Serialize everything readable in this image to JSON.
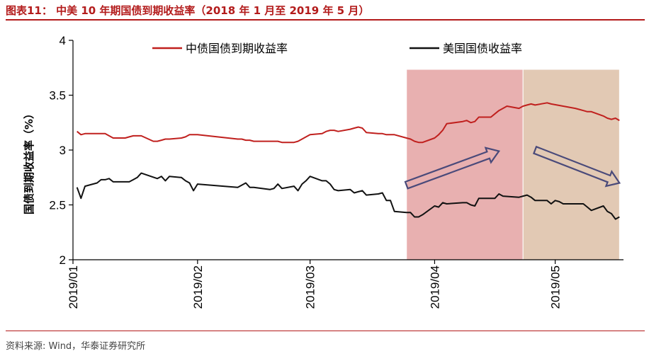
{
  "header": {
    "title": "图表11： 中美 10 年期国债到期收益率（2018 年 1 月至 2019 年 5 月）"
  },
  "footer": {
    "source": "资料来源: Wind，华泰证券研究所"
  },
  "chart_data": {
    "type": "line",
    "title": "",
    "xlabel": "",
    "ylabel": "国债到期收益率（%）",
    "ylim": [
      2,
      4
    ],
    "yticks": [
      "2",
      "2.5",
      "3",
      "3.5",
      "4"
    ],
    "x_ticks": [
      "2019/01",
      "2019/02",
      "2019/03",
      "2019/04",
      "2019/05"
    ],
    "grid": false,
    "legend_placement": "top",
    "shaded_regions": [
      {
        "from": "2019/03/25",
        "to": "2019/04/23",
        "color": "#e8b0b0"
      },
      {
        "from": "2019/04/23",
        "to": "2019/05/17",
        "color": "#e2c9b4"
      }
    ],
    "arrows": [
      {
        "direction": "up",
        "from": [
          "2019/03/25",
          2.68
        ],
        "to": [
          "2019/04/17",
          2.99
        ]
      },
      {
        "direction": "down",
        "from": [
          "2019/04/26",
          3.0
        ],
        "to": [
          "2019/05/17",
          2.7
        ]
      }
    ],
    "series": [
      {
        "name": "中债国债到期收益率",
        "color": "#c0201e",
        "points": [
          [
            "2019/01/02",
            3.17
          ],
          [
            "2019/01/03",
            3.14
          ],
          [
            "2019/01/04",
            3.15
          ],
          [
            "2019/01/07",
            3.15
          ],
          [
            "2019/01/08",
            3.15
          ],
          [
            "2019/01/09",
            3.15
          ],
          [
            "2019/01/10",
            3.13
          ],
          [
            "2019/01/11",
            3.11
          ],
          [
            "2019/01/14",
            3.11
          ],
          [
            "2019/01/15",
            3.12
          ],
          [
            "2019/01/16",
            3.13
          ],
          [
            "2019/01/17",
            3.13
          ],
          [
            "2019/01/18",
            3.13
          ],
          [
            "2019/01/21",
            3.08
          ],
          [
            "2019/01/22",
            3.08
          ],
          [
            "2019/01/23",
            3.09
          ],
          [
            "2019/01/24",
            3.1
          ],
          [
            "2019/01/25",
            3.1
          ],
          [
            "2019/01/28",
            3.11
          ],
          [
            "2019/01/29",
            3.12
          ],
          [
            "2019/01/30",
            3.14
          ],
          [
            "2019/01/31",
            3.14
          ],
          [
            "2019/02/01",
            3.14
          ],
          [
            "2019/02/11",
            3.1
          ],
          [
            "2019/02/12",
            3.1
          ],
          [
            "2019/02/13",
            3.09
          ],
          [
            "2019/02/14",
            3.09
          ],
          [
            "2019/02/15",
            3.08
          ],
          [
            "2019/02/18",
            3.08
          ],
          [
            "2019/02/19",
            3.08
          ],
          [
            "2019/02/20",
            3.08
          ],
          [
            "2019/02/21",
            3.08
          ],
          [
            "2019/02/22",
            3.07
          ],
          [
            "2019/02/25",
            3.07
          ],
          [
            "2019/02/26",
            3.08
          ],
          [
            "2019/02/27",
            3.1
          ],
          [
            "2019/02/28",
            3.12
          ],
          [
            "2019/03/01",
            3.14
          ],
          [
            "2019/03/04",
            3.15
          ],
          [
            "2019/03/05",
            3.17
          ],
          [
            "2019/03/06",
            3.18
          ],
          [
            "2019/03/07",
            3.18
          ],
          [
            "2019/03/08",
            3.17
          ],
          [
            "2019/03/11",
            3.19
          ],
          [
            "2019/03/12",
            3.2
          ],
          [
            "2019/03/13",
            3.21
          ],
          [
            "2019/03/14",
            3.2
          ],
          [
            "2019/03/15",
            3.16
          ],
          [
            "2019/03/18",
            3.15
          ],
          [
            "2019/03/19",
            3.15
          ],
          [
            "2019/03/20",
            3.14
          ],
          [
            "2019/03/21",
            3.14
          ],
          [
            "2019/03/22",
            3.14
          ],
          [
            "2019/03/25",
            3.11
          ],
          [
            "2019/03/26",
            3.1
          ],
          [
            "2019/03/27",
            3.08
          ],
          [
            "2019/03/28",
            3.07
          ],
          [
            "2019/03/29",
            3.07
          ],
          [
            "2019/04/01",
            3.11
          ],
          [
            "2019/04/02",
            3.14
          ],
          [
            "2019/04/03",
            3.18
          ],
          [
            "2019/04/04",
            3.24
          ],
          [
            "2019/04/08",
            3.26
          ],
          [
            "2019/04/09",
            3.27
          ],
          [
            "2019/04/10",
            3.25
          ],
          [
            "2019/04/11",
            3.26
          ],
          [
            "2019/04/12",
            3.3
          ],
          [
            "2019/04/15",
            3.3
          ],
          [
            "2019/04/16",
            3.33
          ],
          [
            "2019/04/17",
            3.36
          ],
          [
            "2019/04/18",
            3.38
          ],
          [
            "2019/04/19",
            3.4
          ],
          [
            "2019/04/22",
            3.38
          ],
          [
            "2019/04/23",
            3.4
          ],
          [
            "2019/04/24",
            3.41
          ],
          [
            "2019/04/25",
            3.42
          ],
          [
            "2019/04/26",
            3.41
          ],
          [
            "2019/04/29",
            3.43
          ],
          [
            "2019/04/30",
            3.42
          ],
          [
            "2019/05/06",
            3.38
          ],
          [
            "2019/05/07",
            3.37
          ],
          [
            "2019/05/08",
            3.36
          ],
          [
            "2019/05/09",
            3.35
          ],
          [
            "2019/05/10",
            3.35
          ],
          [
            "2019/05/13",
            3.31
          ],
          [
            "2019/05/14",
            3.29
          ],
          [
            "2019/05/15",
            3.28
          ],
          [
            "2019/05/16",
            3.29
          ],
          [
            "2019/05/17",
            3.27
          ]
        ]
      },
      {
        "name": "美国国债收益率",
        "color": "#111111",
        "points": [
          [
            "2019/01/02",
            2.66
          ],
          [
            "2019/01/03",
            2.56
          ],
          [
            "2019/01/04",
            2.67
          ],
          [
            "2019/01/07",
            2.7
          ],
          [
            "2019/01/08",
            2.73
          ],
          [
            "2019/01/09",
            2.73
          ],
          [
            "2019/01/10",
            2.74
          ],
          [
            "2019/01/11",
            2.71
          ],
          [
            "2019/01/14",
            2.71
          ],
          [
            "2019/01/15",
            2.71
          ],
          [
            "2019/01/16",
            2.73
          ],
          [
            "2019/01/17",
            2.75
          ],
          [
            "2019/01/18",
            2.79
          ],
          [
            "2019/01/22",
            2.74
          ],
          [
            "2019/01/23",
            2.76
          ],
          [
            "2019/01/24",
            2.72
          ],
          [
            "2019/01/25",
            2.76
          ],
          [
            "2019/01/28",
            2.75
          ],
          [
            "2019/01/29",
            2.72
          ],
          [
            "2019/01/30",
            2.7
          ],
          [
            "2019/01/31",
            2.63
          ],
          [
            "2019/02/01",
            2.69
          ],
          [
            "2019/02/11",
            2.66
          ],
          [
            "2019/02/12",
            2.68
          ],
          [
            "2019/02/13",
            2.7
          ],
          [
            "2019/02/14",
            2.66
          ],
          [
            "2019/02/15",
            2.66
          ],
          [
            "2019/02/19",
            2.64
          ],
          [
            "2019/02/20",
            2.65
          ],
          [
            "2019/02/21",
            2.69
          ],
          [
            "2019/02/22",
            2.65
          ],
          [
            "2019/02/25",
            2.67
          ],
          [
            "2019/02/26",
            2.63
          ],
          [
            "2019/02/27",
            2.69
          ],
          [
            "2019/02/28",
            2.72
          ],
          [
            "2019/03/01",
            2.76
          ],
          [
            "2019/03/04",
            2.72
          ],
          [
            "2019/03/05",
            2.72
          ],
          [
            "2019/03/06",
            2.69
          ],
          [
            "2019/03/07",
            2.64
          ],
          [
            "2019/03/08",
            2.63
          ],
          [
            "2019/03/11",
            2.64
          ],
          [
            "2019/03/12",
            2.61
          ],
          [
            "2019/03/13",
            2.62
          ],
          [
            "2019/03/14",
            2.63
          ],
          [
            "2019/03/15",
            2.59
          ],
          [
            "2019/03/18",
            2.6
          ],
          [
            "2019/03/19",
            2.61
          ],
          [
            "2019/03/20",
            2.54
          ],
          [
            "2019/03/21",
            2.54
          ],
          [
            "2019/03/22",
            2.44
          ],
          [
            "2019/03/25",
            2.43
          ],
          [
            "2019/03/26",
            2.43
          ],
          [
            "2019/03/27",
            2.39
          ],
          [
            "2019/03/28",
            2.39
          ],
          [
            "2019/03/29",
            2.41
          ],
          [
            "2019/04/01",
            2.49
          ],
          [
            "2019/04/02",
            2.48
          ],
          [
            "2019/04/03",
            2.52
          ],
          [
            "2019/04/04",
            2.51
          ],
          [
            "2019/04/08",
            2.52
          ],
          [
            "2019/04/09",
            2.52
          ],
          [
            "2019/04/10",
            2.5
          ],
          [
            "2019/04/11",
            2.49
          ],
          [
            "2019/04/12",
            2.56
          ],
          [
            "2019/04/15",
            2.56
          ],
          [
            "2019/04/16",
            2.56
          ],
          [
            "2019/04/17",
            2.6
          ],
          [
            "2019/04/18",
            2.58
          ],
          [
            "2019/04/22",
            2.57
          ],
          [
            "2019/04/23",
            2.58
          ],
          [
            "2019/04/24",
            2.59
          ],
          [
            "2019/04/25",
            2.57
          ],
          [
            "2019/04/26",
            2.54
          ],
          [
            "2019/04/29",
            2.54
          ],
          [
            "2019/04/30",
            2.51
          ],
          [
            "2019/05/01",
            2.54
          ],
          [
            "2019/05/02",
            2.53
          ],
          [
            "2019/05/03",
            2.51
          ],
          [
            "2019/05/06",
            2.51
          ],
          [
            "2019/05/07",
            2.51
          ],
          [
            "2019/05/08",
            2.51
          ],
          [
            "2019/05/09",
            2.48
          ],
          [
            "2019/05/10",
            2.45
          ],
          [
            "2019/05/13",
            2.49
          ],
          [
            "2019/05/14",
            2.44
          ],
          [
            "2019/05/15",
            2.42
          ],
          [
            "2019/05/16",
            2.37
          ],
          [
            "2019/05/17",
            2.39
          ]
        ]
      }
    ]
  }
}
